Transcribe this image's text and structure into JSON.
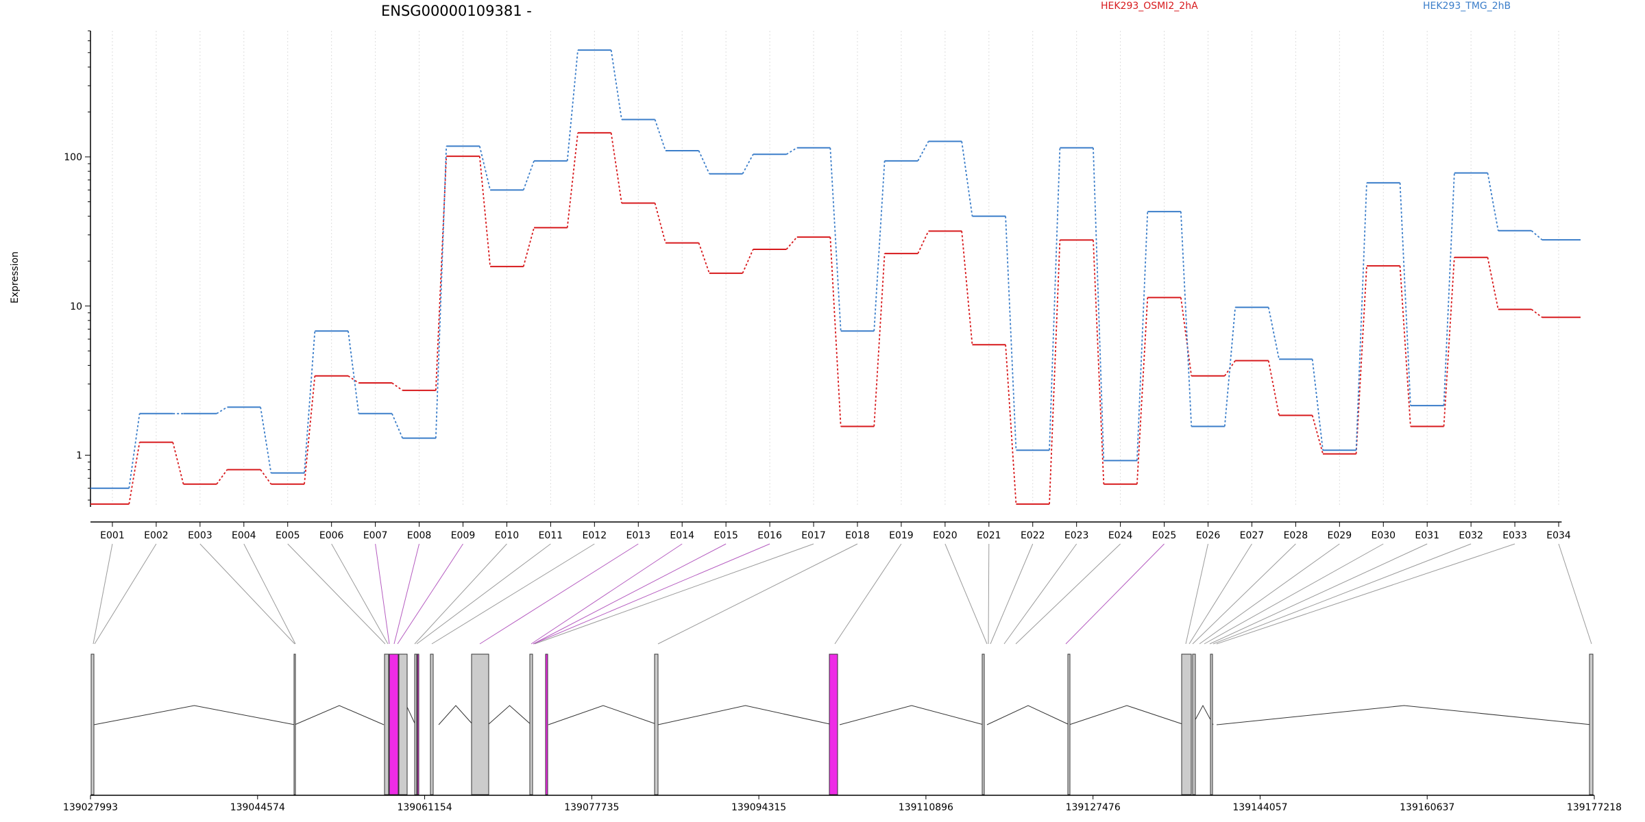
{
  "chart_data": {
    "type": "line",
    "title": "ENSG00000109381 -",
    "ylabel": "Expression",
    "y_scale": "log",
    "ylim": [
      0.45,
      700
    ],
    "y_ticks": [
      {
        "value": 1,
        "label": "1"
      },
      {
        "value": 10,
        "label": "10"
      },
      {
        "value": 100,
        "label": "100"
      }
    ],
    "grid": "vertical dotted",
    "legend_placement": "top",
    "categories": [
      "E001",
      "E002",
      "E003",
      "E004",
      "E005",
      "E006",
      "E007",
      "E008",
      "E009",
      "E010",
      "E011",
      "E012",
      "E013",
      "E014",
      "E015",
      "E016",
      "E017",
      "E018",
      "E019",
      "E020",
      "E021",
      "E022",
      "E023",
      "E024",
      "E025",
      "E026",
      "E027",
      "E028",
      "E029",
      "E030",
      "E031",
      "E032",
      "E033",
      "E034"
    ],
    "series": [
      {
        "name": "HEK293_OSMI2_2hA",
        "color": "#d7191c",
        "values": [
          0.47,
          1.22,
          0.64,
          0.8,
          0.64,
          3.4,
          3.05,
          2.72,
          101,
          18.4,
          33.5,
          145,
          49,
          26.5,
          16.6,
          24,
          29,
          1.56,
          22.5,
          31.8,
          5.5,
          0.47,
          27.7,
          0.64,
          11.4,
          3.4,
          4.3,
          1.85,
          1.02,
          18.6,
          1.56,
          21.2,
          9.5,
          8.4
        ]
      },
      {
        "name": "HEK293_TMG_2hB",
        "color": "#3a7dc9",
        "values": [
          0.6,
          1.9,
          1.9,
          2.1,
          0.76,
          6.8,
          1.9,
          1.3,
          118,
          60,
          94,
          520,
          178,
          110,
          77,
          104,
          115,
          6.8,
          94,
          127,
          40,
          1.08,
          115,
          0.92,
          43,
          1.56,
          9.8,
          4.4,
          1.08,
          67,
          2.15,
          78,
          32,
          27.8
        ]
      }
    ],
    "gene_structure": {
      "coordinate_ticks": [
        "139027993",
        "139044574",
        "139061154",
        "139077735",
        "139094315",
        "139110896",
        "139127476",
        "139144057",
        "139160637",
        "139177218"
      ],
      "highlight_color": "#ee2ce6",
      "exon_color": "#cccccc",
      "highlighted_exons": [
        "E007",
        "E008",
        "E009",
        "E013",
        "E014",
        "E015",
        "E016",
        "E025"
      ]
    }
  }
}
